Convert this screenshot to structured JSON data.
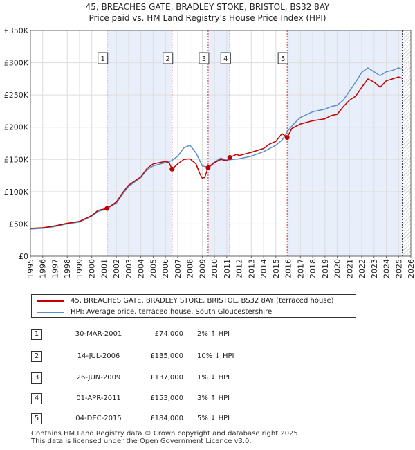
{
  "title_line1": "45, BREACHES GATE, BRADLEY STOKE, BRISTOL, BS32 8AY",
  "title_line2": "Price paid vs. HM Land Registry's House Price Index (HPI)",
  "colors": {
    "property": "#c00000",
    "hpi": "#5b8fcc",
    "shade": "#e8eefa"
  },
  "chart_data": {
    "type": "line",
    "xlim": [
      1995,
      2026
    ],
    "ylim": [
      0,
      350000
    ],
    "yticks": [
      0,
      50000,
      100000,
      150000,
      200000,
      250000,
      300000,
      350000
    ],
    "ytick_labels": [
      "£0",
      "£50K",
      "£100K",
      "£150K",
      "£200K",
      "£250K",
      "£300K",
      "£350K"
    ],
    "xticks": [
      1995,
      1996,
      1997,
      1998,
      1999,
      2000,
      2001,
      2002,
      2003,
      2004,
      2005,
      2006,
      2007,
      2008,
      2009,
      2010,
      2011,
      2012,
      2013,
      2014,
      2015,
      2016,
      2017,
      2018,
      2019,
      2020,
      2021,
      2022,
      2023,
      2024,
      2025,
      2026
    ],
    "series": [
      {
        "name": "45, BREACHES GATE, BRADLEY STOKE, BRISTOL, BS32 8AY (terraced house)",
        "x": [
          1995,
          1996,
          1997,
          1998,
          1999,
          2000,
          2000.5,
          2001.24,
          2002,
          2002.5,
          2003,
          2004,
          2004.5,
          2005,
          2006,
          2006.3,
          2006.54,
          2007,
          2007.5,
          2008,
          2008.5,
          2008.8,
          2009.0,
          2009.2,
          2009.48,
          2010,
          2010.5,
          2011.0,
          2011.25,
          2011.8,
          2012,
          2013,
          2014,
          2014.5,
          2015,
          2015.5,
          2015.92,
          2016.3,
          2017,
          2018,
          2019,
          2019.5,
          2020,
          2020.5,
          2021,
          2021.5,
          2022,
          2022.5,
          2023,
          2023.5,
          2024,
          2024.5,
          2025,
          2025.3
        ],
        "values": [
          43000,
          44000,
          47000,
          51000,
          54000,
          63000,
          71000,
          74000,
          84000,
          98000,
          110000,
          123000,
          136000,
          143000,
          147000,
          145000,
          135000,
          143000,
          150000,
          151000,
          143000,
          128000,
          121000,
          122000,
          137000,
          145000,
          150000,
          148000,
          153000,
          158000,
          156000,
          161000,
          167000,
          174000,
          178000,
          190000,
          184000,
          198000,
          205000,
          210000,
          213000,
          218000,
          220000,
          232000,
          242000,
          248000,
          262000,
          275000,
          270000,
          262000,
          272000,
          275000,
          278000,
          276000
        ]
      },
      {
        "name": "HPI: Average price, terraced house, South Gloucestershire",
        "x": [
          1995,
          1996,
          1997,
          1998,
          1999,
          2000,
          2000.5,
          2001,
          2002,
          2002.5,
          2003,
          2004,
          2004.5,
          2005,
          2006,
          2006.5,
          2007,
          2007.5,
          2008,
          2008.5,
          2009,
          2009.5,
          2010,
          2010.5,
          2011,
          2011.5,
          2012,
          2013,
          2014,
          2015,
          2015.5,
          2016,
          2016.5,
          2017,
          2018,
          2019,
          2019.5,
          2020,
          2020.5,
          2021,
          2021.5,
          2022,
          2022.5,
          2023,
          2023.5,
          2024,
          2024.5,
          2025,
          2025.3
        ],
        "values": [
          42000,
          43000,
          46000,
          50000,
          53000,
          62000,
          69000,
          72000,
          82000,
          96000,
          108000,
          122000,
          134000,
          140000,
          145000,
          148000,
          155000,
          168000,
          172000,
          160000,
          140000,
          138000,
          146000,
          152000,
          149000,
          150000,
          151000,
          155000,
          162000,
          172000,
          180000,
          195000,
          206000,
          215000,
          224000,
          228000,
          232000,
          234000,
          242000,
          256000,
          270000,
          285000,
          292000,
          286000,
          280000,
          286000,
          288000,
          292000,
          290000
        ]
      }
    ],
    "sales": [
      {
        "label": "1",
        "x": 2001.24,
        "value": 74000
      },
      {
        "label": "2",
        "x": 2006.54,
        "value": 135000
      },
      {
        "label": "3",
        "x": 2009.48,
        "value": 137000
      },
      {
        "label": "4",
        "x": 2011.25,
        "value": 153000
      },
      {
        "label": "5",
        "x": 2015.92,
        "value": 184000
      }
    ],
    "shaded_ranges": [
      [
        2001.24,
        2006.54
      ],
      [
        2009.48,
        2011.25
      ],
      [
        2015.92,
        2025.3
      ]
    ],
    "hatched_from": 2025.3
  },
  "legend": {
    "property_label": "45, BREACHES GATE, BRADLEY STOKE, BRISTOL, BS32 8AY (terraced house)",
    "hpi_label": "HPI: Average price, terraced house, South Gloucestershire"
  },
  "transactions": [
    {
      "num": "1",
      "date": "30-MAR-2001",
      "price": "£74,000",
      "hpi": "2% ↑ HPI"
    },
    {
      "num": "2",
      "date": "14-JUL-2006",
      "price": "£135,000",
      "hpi": "10% ↓ HPI"
    },
    {
      "num": "3",
      "date": "26-JUN-2009",
      "price": "£137,000",
      "hpi": "1% ↓ HPI"
    },
    {
      "num": "4",
      "date": "01-APR-2011",
      "price": "£153,000",
      "hpi": "3% ↑ HPI"
    },
    {
      "num": "5",
      "date": "04-DEC-2015",
      "price": "£184,000",
      "hpi": "5% ↓ HPI"
    }
  ],
  "footer_line1": "Contains HM Land Registry data © Crown copyright and database right 2025.",
  "footer_line2": "This data is licensed under the Open Government Licence v3.0."
}
